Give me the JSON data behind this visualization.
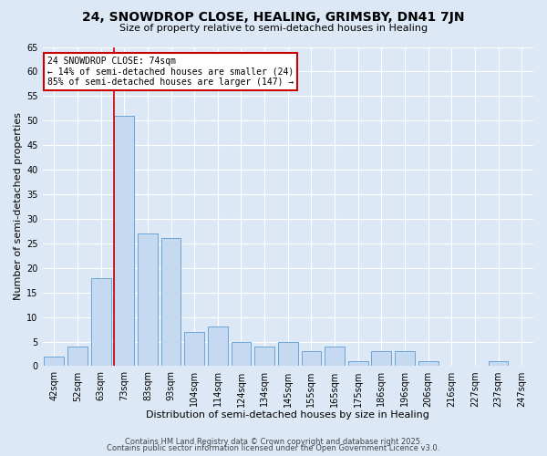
{
  "title": "24, SNOWDROP CLOSE, HEALING, GRIMSBY, DN41 7JN",
  "subtitle": "Size of property relative to semi-detached houses in Healing",
  "xlabel": "Distribution of semi-detached houses by size in Healing",
  "ylabel": "Number of semi-detached properties",
  "bins": [
    "42sqm",
    "52sqm",
    "63sqm",
    "73sqm",
    "83sqm",
    "93sqm",
    "104sqm",
    "114sqm",
    "124sqm",
    "134sqm",
    "145sqm",
    "155sqm",
    "165sqm",
    "175sqm",
    "186sqm",
    "196sqm",
    "206sqm",
    "216sqm",
    "227sqm",
    "237sqm",
    "247sqm"
  ],
  "values": [
    2,
    4,
    18,
    51,
    27,
    26,
    7,
    8,
    5,
    4,
    5,
    3,
    4,
    1,
    3,
    3,
    1,
    0,
    0,
    1,
    0
  ],
  "bar_color": "#c5d9f0",
  "bar_edge_color": "#5b9bd5",
  "highlight_bar_index": 3,
  "highlight_line_color": "#cc0000",
  "ylim": [
    0,
    65
  ],
  "yticks": [
    0,
    5,
    10,
    15,
    20,
    25,
    30,
    35,
    40,
    45,
    50,
    55,
    60,
    65
  ],
  "annotation_title": "24 SNOWDROP CLOSE: 74sqm",
  "annotation_line1": "← 14% of semi-detached houses are smaller (24)",
  "annotation_line2": "85% of semi-detached houses are larger (147) →",
  "annotation_box_color": "#ffffff",
  "annotation_box_edge": "#cc0000",
  "footer1": "Contains HM Land Registry data © Crown copyright and database right 2025.",
  "footer2": "Contains public sector information licensed under the Open Government Licence v3.0.",
  "bg_color": "#dce8f5",
  "plot_bg_color": "#dce8f5",
  "title_fontsize": 10,
  "subtitle_fontsize": 8,
  "axis_label_fontsize": 8,
  "tick_fontsize": 7,
  "annotation_fontsize": 7,
  "footer_fontsize": 6
}
